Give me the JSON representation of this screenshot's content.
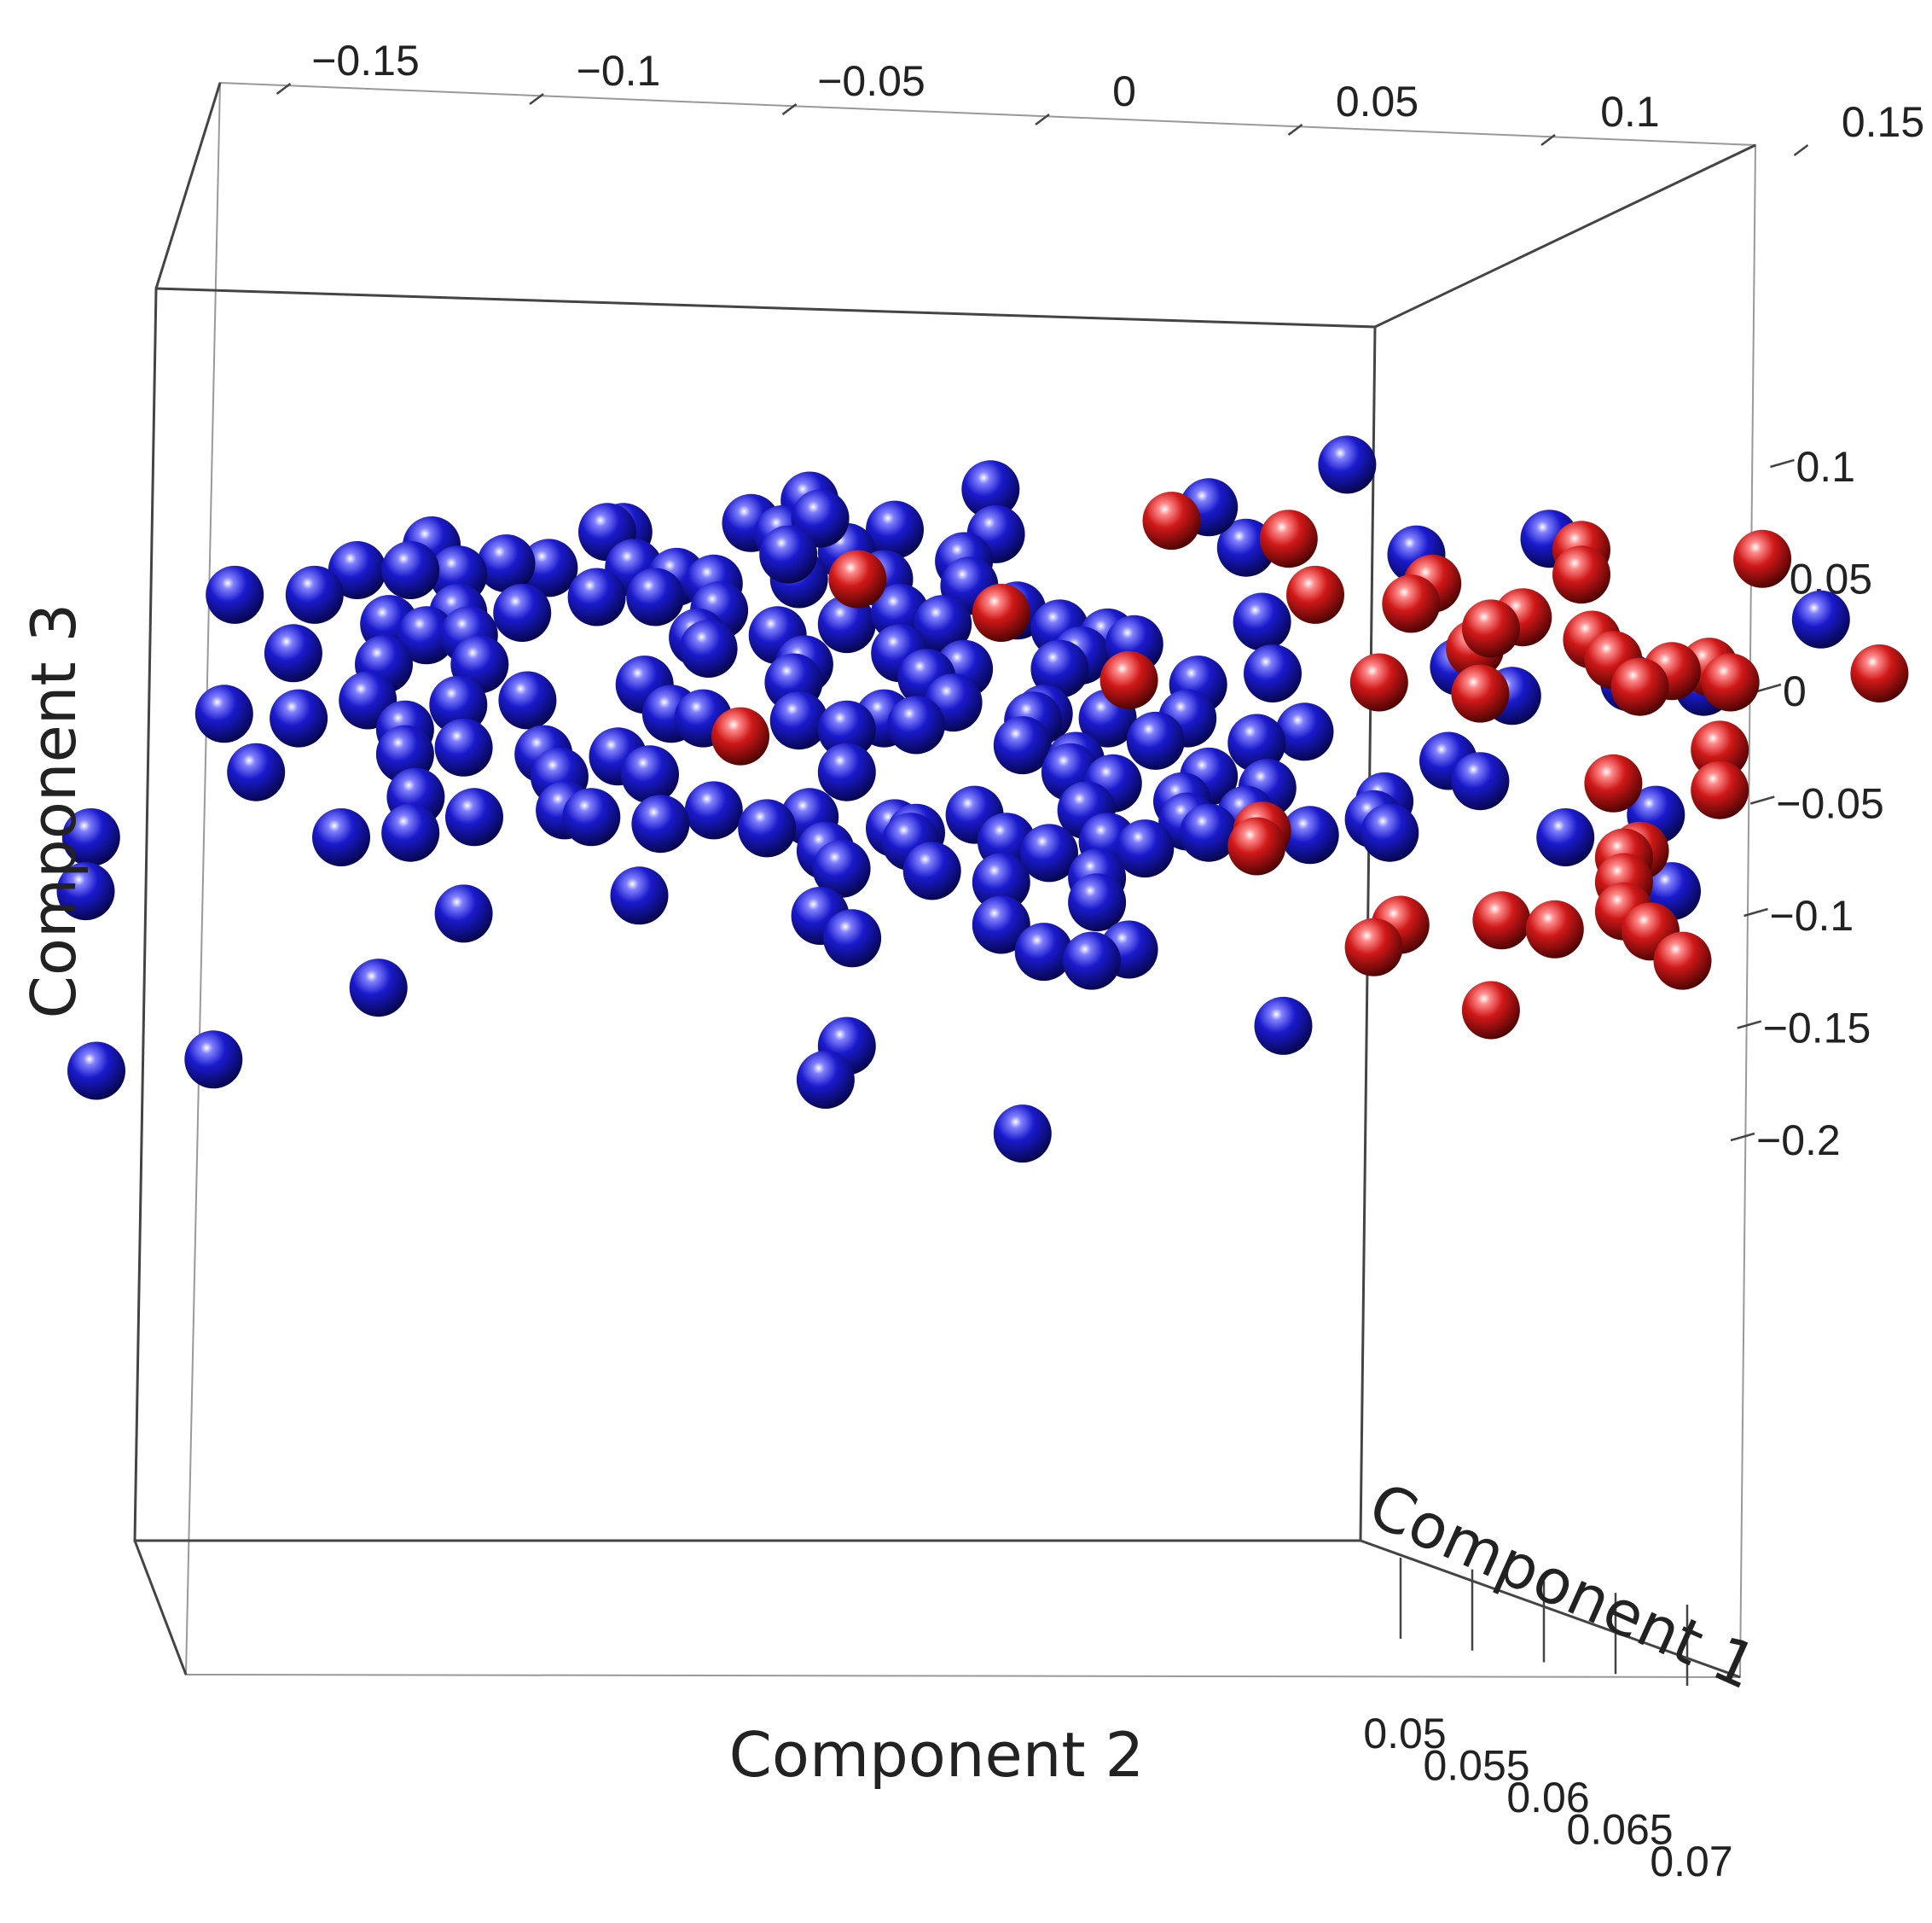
{
  "chart_data": {
    "type": "scatter",
    "projection": "3d",
    "xlabel": "Component 2",
    "ylabel": "Component 3",
    "zlabel": "Component 1",
    "xlim": [
      -0.18,
      0.15
    ],
    "ylim": [
      -0.2,
      0.13
    ],
    "zlim": [
      0.05,
      0.07
    ],
    "x_ticks": [
      "−0.15",
      "−0.1",
      "−0.05",
      "0",
      "0.05",
      "0.1",
      "0.15"
    ],
    "y_ticks": [
      "0.1",
      "0.05",
      "0",
      "−0.05",
      "−0.1",
      "−0.15",
      "−0.2"
    ],
    "z_ticks": [
      "0.05",
      "0.055",
      "0.06",
      "0.065",
      "0.07"
    ],
    "grid": false,
    "legend": "none",
    "colors": {
      "group_a": "#1a1acc",
      "group_b": "#d01818",
      "frame": "#444444"
    },
    "series": [
      {
        "color": "#1a1acc",
        "points": [
          [
            -0.007,
            0.09
          ],
          [
            -0.006,
            0.07
          ],
          [
            -0.041,
            0.085
          ],
          [
            -0.052,
            0.075
          ],
          [
            -0.025,
            0.072
          ],
          [
            -0.046,
            0.07
          ],
          [
            -0.034,
            0.062
          ],
          [
            -0.039,
            0.077
          ],
          [
            -0.076,
            0.071
          ],
          [
            -0.079,
            0.071
          ],
          [
            -0.112,
            0.065
          ],
          [
            -0.126,
            0.054
          ],
          [
            -0.09,
            0.055
          ],
          [
            -0.098,
            0.057
          ],
          [
            -0.107,
            0.052
          ],
          [
            -0.116,
            0.054
          ],
          [
            -0.074,
            0.055
          ],
          [
            -0.066,
            0.051
          ],
          [
            -0.059,
            0.048
          ],
          [
            -0.043,
            0.05
          ],
          [
            -0.027,
            0.05
          ],
          [
            -0.012,
            0.058
          ],
          [
            -0.045,
            0.061
          ],
          [
            -0.011,
            0.047
          ],
          [
            -0.149,
            0.043
          ],
          [
            -0.134,
            0.043
          ],
          [
            -0.107,
            0.035
          ],
          [
            -0.095,
            0.035
          ],
          [
            -0.081,
            0.042
          ],
          [
            -0.07,
            0.042
          ],
          [
            -0.058,
            0.036
          ],
          [
            -0.034,
            0.03
          ],
          [
            -0.024,
            0.035
          ],
          [
            -0.016,
            0.03
          ],
          [
            -0.002,
            0.036
          ],
          [
            -0.12,
            0.03
          ],
          [
            -0.113,
            0.025
          ],
          [
            -0.105,
            0.025
          ],
          [
            -0.062,
            0.024
          ],
          [
            -0.047,
            0.025
          ],
          [
            0.006,
            0.028
          ],
          [
            0.015,
            0.024
          ],
          [
            0.044,
            0.031
          ],
          [
            -0.138,
            0.017
          ],
          [
            -0.121,
            0.012
          ],
          [
            -0.103,
            0.012
          ],
          [
            -0.06,
            0.019
          ],
          [
            -0.042,
            0.012
          ],
          [
            -0.024,
            0.017
          ],
          [
            -0.012,
            0.01
          ],
          [
            0.01,
            0.016
          ],
          [
            0.02,
            0.021
          ],
          [
            -0.072,
            0.003
          ],
          [
            -0.044,
            0.004
          ],
          [
            -0.019,
            0.006
          ],
          [
            0.006,
            0.01
          ],
          [
            0.032,
            0.003
          ],
          [
            0.046,
            0.008
          ],
          [
            0.081,
            0.011
          ],
          [
            0.113,
            0.004
          ],
          [
            -0.124,
            -0.004
          ],
          [
            -0.107,
            -0.006
          ],
          [
            -0.094,
            -0.004
          ],
          [
            -0.067,
            -0.01
          ],
          [
            -0.043,
            -0.013
          ],
          [
            -0.014,
            -0.005
          ],
          [
            0.003,
            -0.01
          ],
          [
            0.015,
            -0.012
          ],
          [
            -0.151,
            -0.01
          ],
          [
            -0.137,
            -0.012
          ],
          [
            -0.117,
            -0.017
          ],
          [
            -0.061,
            -0.012
          ],
          [
            -0.027,
            -0.012
          ],
          [
            -0.021,
            -0.015
          ],
          [
            -0.034,
            -0.017
          ],
          [
            0.001,
            -0.013
          ],
          [
            0.03,
            -0.012
          ],
          [
            0.052,
            -0.018
          ],
          [
            0.091,
            -0.002
          ],
          [
            0.127,
            0.002
          ],
          [
            -0.117,
            -0.028
          ],
          [
            -0.106,
            -0.025
          ],
          [
            -0.077,
            -0.029
          ],
          [
            -0.091,
            -0.028
          ],
          [
            -0.001,
            -0.024
          ],
          [
            0.009,
            -0.031
          ],
          [
            0.024,
            -0.022
          ],
          [
            0.043,
            -0.023
          ],
          [
            0.079,
            -0.031
          ],
          [
            -0.145,
            -0.036
          ],
          [
            -0.088,
            -0.038
          ],
          [
            -0.071,
            -0.037
          ],
          [
            -0.034,
            -0.036
          ],
          [
            0.008,
            -0.036
          ],
          [
            0.016,
            -0.041
          ],
          [
            0.034,
            -0.038
          ],
          [
            0.085,
            -0.04
          ],
          [
            -0.115,
            -0.047
          ],
          [
            -0.087,
            -0.053
          ],
          [
            -0.059,
            -0.053
          ],
          [
            0.029,
            -0.049
          ],
          [
            0.045,
            -0.043
          ],
          [
            0.067,
            -0.049
          ],
          [
            -0.104,
            -0.056
          ],
          [
            -0.082,
            -0.056
          ],
          [
            -0.041,
            -0.056
          ],
          [
            -0.01,
            -0.055
          ],
          [
            0.011,
            -0.053
          ],
          [
            0.03,
            -0.058
          ],
          [
            0.041,
            -0.055
          ],
          [
            0.065,
            -0.057
          ],
          [
            0.118,
            -0.055
          ],
          [
            -0.116,
            -0.063
          ],
          [
            -0.069,
            -0.059
          ],
          [
            -0.049,
            -0.061
          ],
          [
            -0.025,
            -0.061
          ],
          [
            -0.021,
            -0.063
          ],
          [
            -0.022,
            -0.067
          ],
          [
            -0.004,
            -0.067
          ],
          [
            0.015,
            -0.067
          ],
          [
            0.034,
            -0.063
          ],
          [
            0.053,
            -0.064
          ],
          [
            0.068,
            -0.063
          ],
          [
            0.101,
            -0.065
          ],
          [
            -0.129,
            -0.065
          ],
          [
            -0.176,
            -0.065
          ],
          [
            -0.038,
            -0.071
          ],
          [
            0.004,
            -0.072
          ],
          [
            0.022,
            -0.07
          ],
          [
            -0.035,
            -0.079
          ],
          [
            -0.018,
            -0.08
          ],
          [
            -0.005,
            -0.085
          ],
          [
            0.013,
            -0.083
          ],
          [
            0.013,
            -0.094
          ],
          [
            -0.073,
            -0.091
          ],
          [
            -0.106,
            -0.099
          ],
          [
            -0.039,
            -0.1
          ],
          [
            -0.033,
            -0.11
          ],
          [
            -0.005,
            -0.104
          ],
          [
            0.003,
            -0.116
          ],
          [
            0.019,
            -0.115
          ],
          [
            0.012,
            -0.12
          ],
          [
            -0.177,
            -0.089
          ],
          [
            -0.122,
            -0.132
          ],
          [
            0.121,
            -0.089
          ],
          [
            0.048,
            -0.149
          ],
          [
            -0.153,
            -0.164
          ],
          [
            -0.175,
            -0.169
          ],
          [
            -0.034,
            -0.158
          ],
          [
            -0.038,
            -0.173
          ],
          [
            -0.001,
            -0.197
          ],
          [
            0.06,
            0.101
          ],
          [
            0.149,
            0.032
          ],
          [
            0.098,
            0.068
          ],
          [
            0.073,
            0.061
          ],
          [
            0.041,
            0.064
          ],
          [
            0.034,
            0.082
          ]
        ]
      },
      {
        "color": "#d01818",
        "points": [
          [
            0.027,
            0.076
          ],
          [
            0.049,
            0.068
          ],
          [
            0.104,
            0.063
          ],
          [
            0.138,
            0.059
          ],
          [
            0.104,
            0.052
          ],
          [
            -0.032,
            0.05
          ],
          [
            0.076,
            0.048
          ],
          [
            0.054,
            0.043
          ],
          [
            0.072,
            0.039
          ],
          [
            0.093,
            0.033
          ],
          [
            -0.005,
            0.035
          ],
          [
            0.084,
            0.019
          ],
          [
            0.087,
            0.028
          ],
          [
            0.106,
            0.023
          ],
          [
            0.11,
            0.014
          ],
          [
            0.128,
            0.011
          ],
          [
            0.121,
            0.009
          ],
          [
            0.16,
            0.008
          ],
          [
            0.132,
            0.004
          ],
          [
            0.115,
            0.002
          ],
          [
            0.019,
            0.005
          ],
          [
            0.066,
            0.004
          ],
          [
            0.085,
            -0.001
          ],
          [
            -0.054,
            -0.02
          ],
          [
            0.13,
            -0.026
          ],
          [
            0.11,
            -0.041
          ],
          [
            0.13,
            -0.044
          ],
          [
            0.044,
            -0.062
          ],
          [
            0.043,
            -0.069
          ],
          [
            0.115,
            -0.071
          ],
          [
            0.112,
            -0.074
          ],
          [
            0.112,
            -0.085
          ],
          [
            0.112,
            -0.098
          ],
          [
            0.089,
            -0.102
          ],
          [
            0.07,
            -0.104
          ],
          [
            0.117,
            -0.107
          ],
          [
            0.099,
            -0.106
          ],
          [
            0.123,
            -0.12
          ],
          [
            0.065,
            -0.114
          ],
          [
            0.087,
            -0.142
          ]
        ]
      }
    ]
  }
}
